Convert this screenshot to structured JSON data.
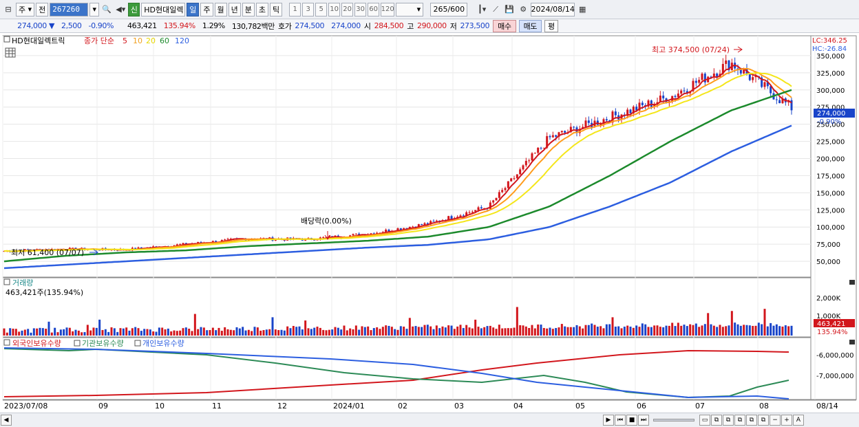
{
  "toolbar": {
    "market": "주",
    "prev": "전",
    "code": "267260",
    "badge": "신",
    "stock_name": "HD현대일렉",
    "periods": [
      "일",
      "주",
      "월",
      "년",
      "분",
      "초",
      "틱"
    ],
    "active_period": "일",
    "intervals": [
      "1",
      "3",
      "5",
      "10",
      "20",
      "30",
      "60",
      "120"
    ],
    "count": "265",
    "count_max": "/600",
    "date": "2024/08/14"
  },
  "quote": {
    "price": "274,000",
    "arrow": "▼",
    "change": "2,500",
    "change_pct": "-0.90%",
    "volume": "463,421",
    "vol_ratio": "135.94%",
    "turnover_pct": "1.29%",
    "amount": "130,782백만",
    "bid_label": "호가",
    "bid": "274,500",
    "ask": "274,000",
    "open_label": "시",
    "open": "284,500",
    "high_label": "고",
    "high": "290,000",
    "low_label": "저",
    "low": "273,500",
    "buy": "매수",
    "sell": "매도",
    "avg": "평"
  },
  "price_panel": {
    "legend_name": "HD현대일렉트릭",
    "legend_ma_label": "종가 단순",
    "ma_periods": [
      "5",
      "10",
      "20",
      "60",
      "120"
    ],
    "ma_colors": [
      "#d2161c",
      "#ff9c1c",
      "#f4e61a",
      "#1c8a2c",
      "#2c5ee0"
    ],
    "lc": "LC:346.25",
    "hc": "HC:-26.84",
    "current_price_tag": "274,000",
    "current_pct_tag": "-0.90%",
    "high_annotation": "최고 374,500 (07/24)",
    "low_annotation": "최저 61,400 (07/07)",
    "dividend_annotation": "배당락(0.00%)",
    "y_ticks": [
      "350,000",
      "325,000",
      "300,000",
      "275,000",
      "250,000",
      "225,000",
      "200,000",
      "175,000",
      "150,000",
      "125,000",
      "100,000",
      "75,000",
      "50,000"
    ]
  },
  "volume_panel": {
    "title": "거래량",
    "value": "463,421주(135.94%)",
    "y_ticks": [
      "2,000K",
      "1,000K"
    ],
    "tag_value": "463,421",
    "tag_pct": "135.94%"
  },
  "holding_panel": {
    "legend": [
      "외국인보유수량",
      "기관보유수량",
      "개인보유수량"
    ],
    "colors": [
      "#d2161c",
      "#2c8a56",
      "#2c5ee0"
    ],
    "y_ticks": [
      "-6,000,000",
      "-7,000,000"
    ]
  },
  "x_axis": [
    "2023/07/08",
    "09",
    "10",
    "11",
    "12",
    "2024/01",
    "02",
    "03",
    "04",
    "05",
    "06",
    "07",
    "08",
    "08/14"
  ],
  "chart_data": {
    "type": "line",
    "title": "HD현대일렉트릭",
    "x": [
      "2023-07",
      "2023-08",
      "2023-09",
      "2023-10",
      "2023-11",
      "2023-12",
      "2024-01",
      "2024-02",
      "2024-03",
      "2024-04",
      "2024-05",
      "2024-06",
      "2024-07",
      "2024-08"
    ],
    "series": [
      {
        "name": "종가",
        "values": [
          65000,
          68000,
          67000,
          75000,
          83000,
          82000,
          90000,
          105000,
          130000,
          230000,
          260000,
          290000,
          340000,
          274000
        ]
      },
      {
        "name": "60",
        "values": [
          50000,
          58000,
          63000,
          66000,
          72000,
          76000,
          80000,
          86000,
          100000,
          130000,
          175000,
          225000,
          270000,
          300000
        ]
      },
      {
        "name": "120",
        "values": [
          40000,
          45000,
          50000,
          55000,
          60000,
          65000,
          70000,
          74000,
          82000,
          100000,
          130000,
          165000,
          210000,
          248000
        ]
      }
    ],
    "high": 374500,
    "low": 61400,
    "ylim": [
      30000,
      375000
    ]
  }
}
